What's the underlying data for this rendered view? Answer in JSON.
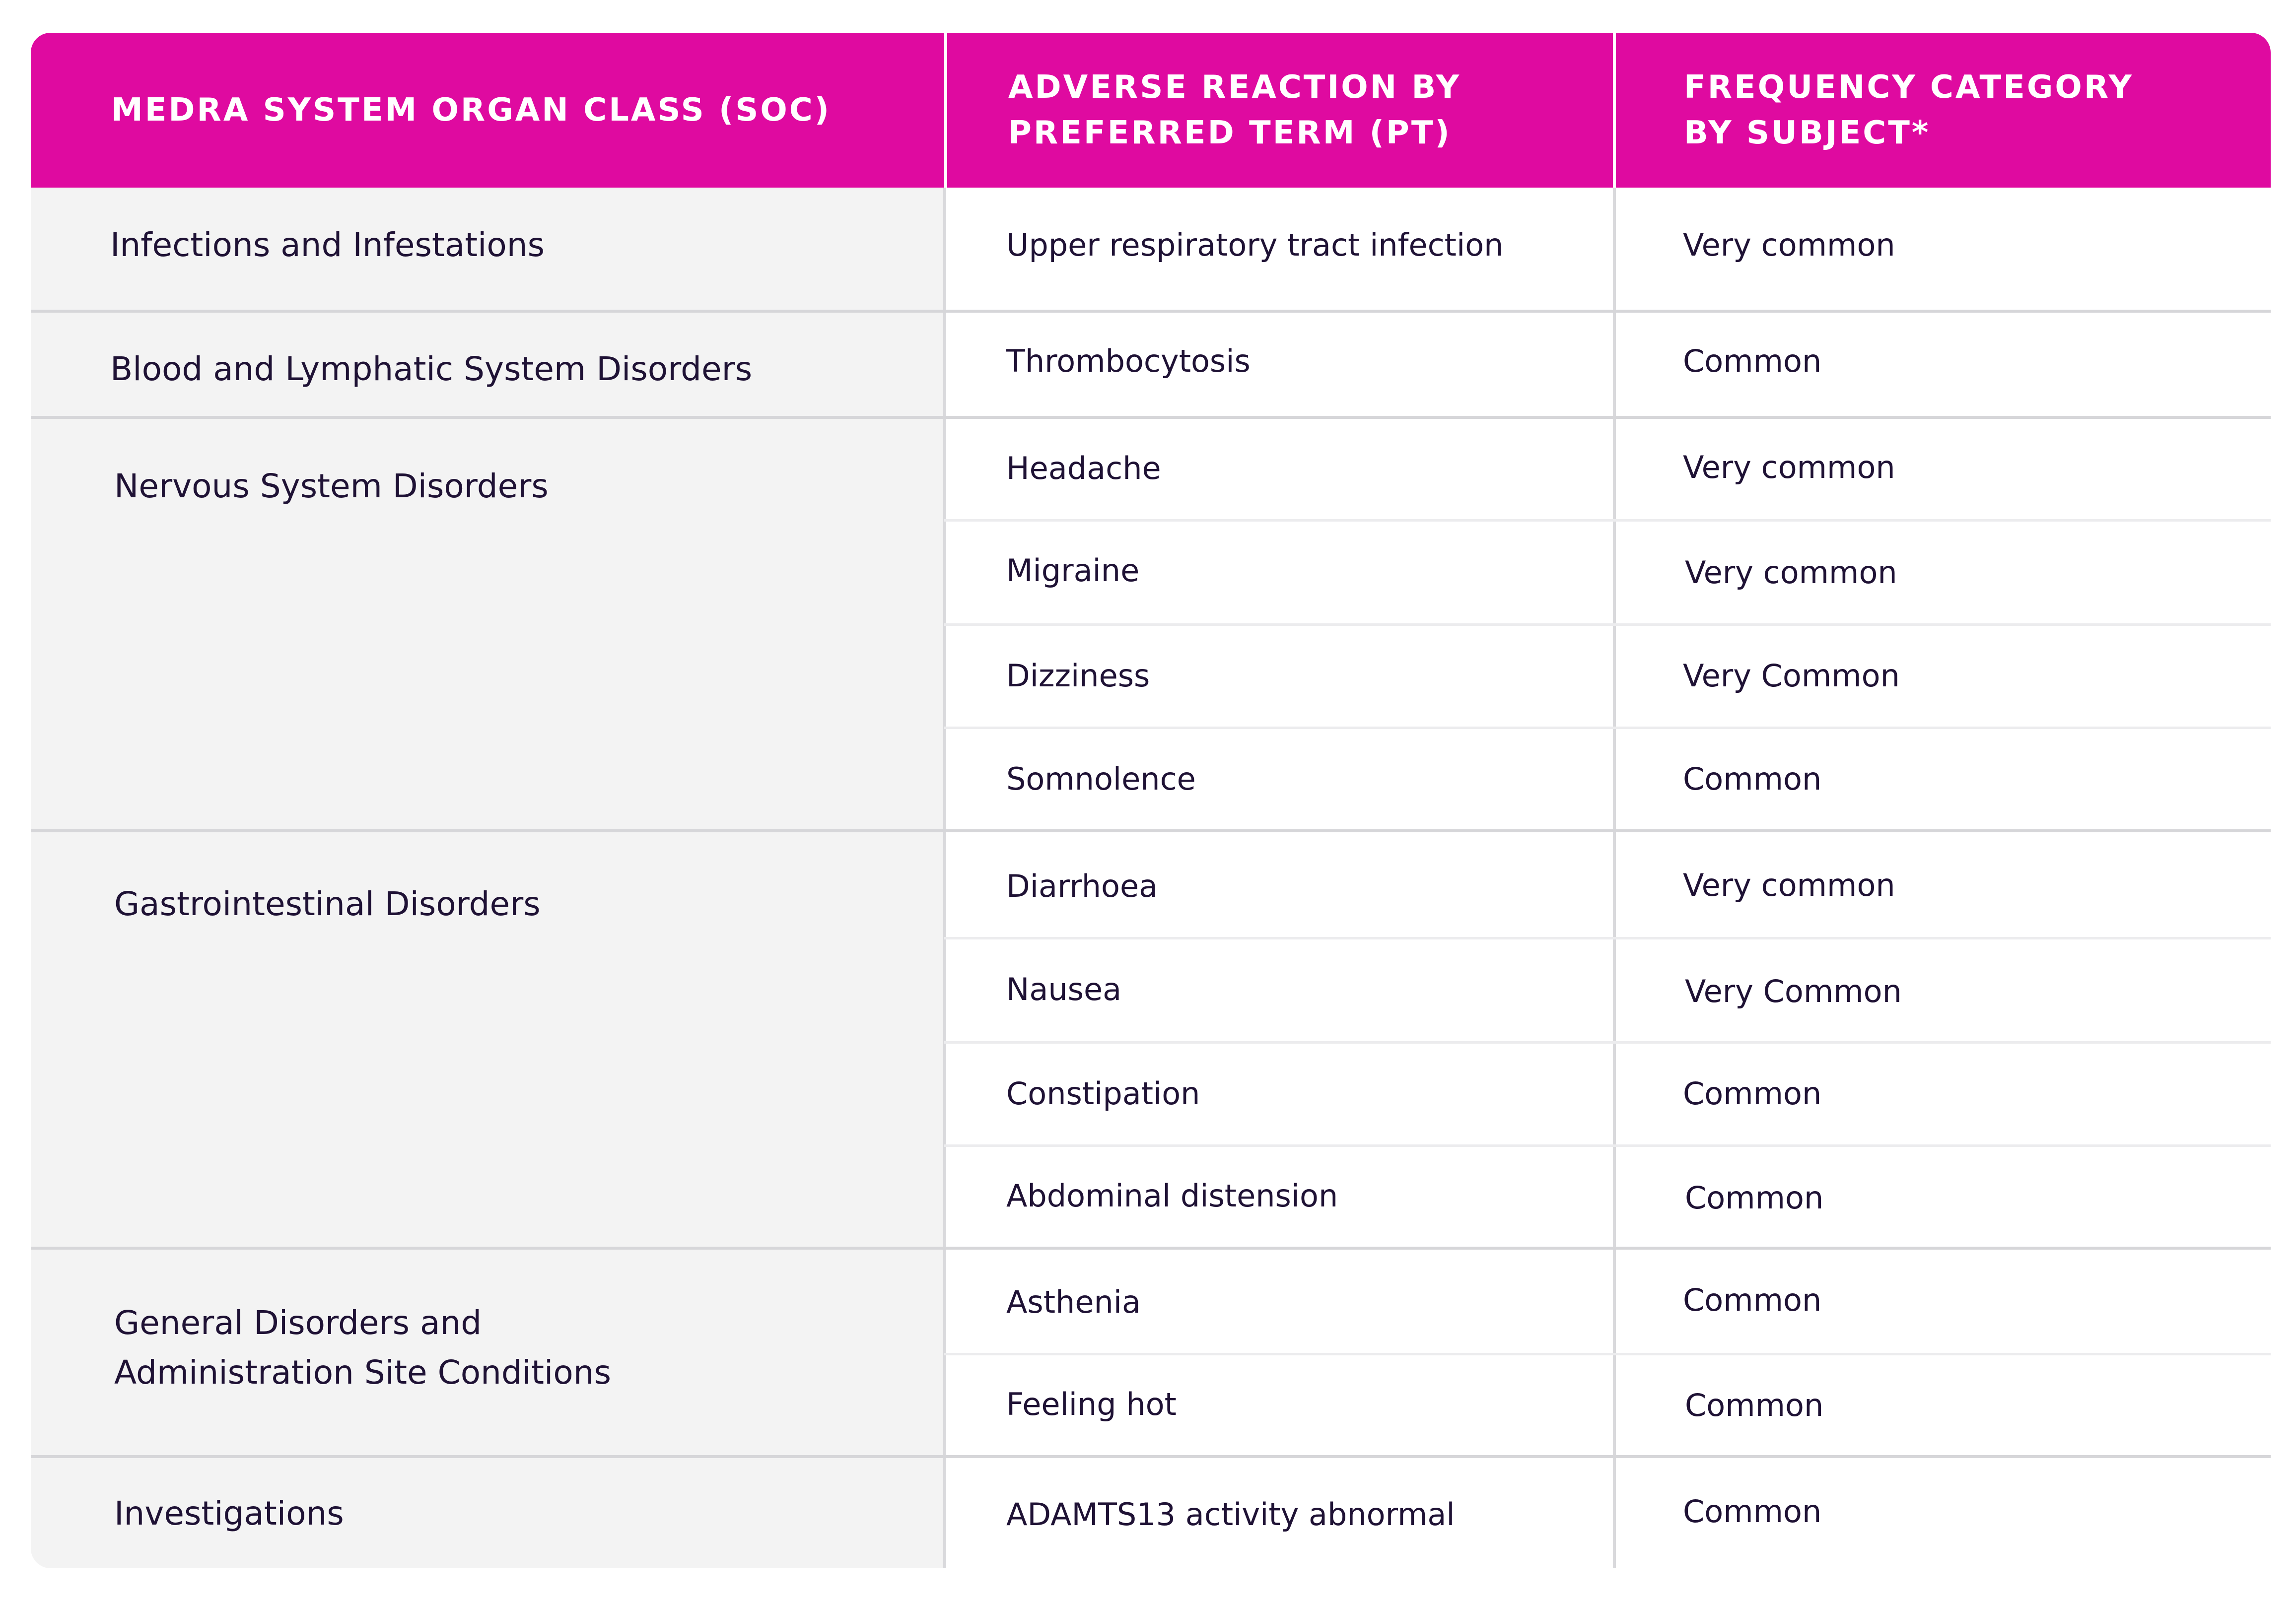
{
  "header": {
    "col1": "MEDRA SYSTEM ORGAN CLASS (SOC)",
    "col2_line1": "ADVERSE REACTION BY",
    "col2_line2": "PREFERRED TERM (PT)",
    "col3_line1": "FREQUENCY CATEGORY",
    "col3_line2": "BY SUBJECT*"
  },
  "colors": {
    "header_bg": "#df0aa0",
    "soc_bg": "#f3f3f3",
    "text": "#1f1235"
  },
  "groups": [
    {
      "soc": [
        "Infections and Infestations"
      ],
      "rows": [
        {
          "pt": "Upper respiratory tract infection",
          "freq": "Very common"
        }
      ]
    },
    {
      "soc": [
        "Blood and Lymphatic System Disorders"
      ],
      "rows": [
        {
          "pt": "Thrombocytosis",
          "freq": "Common"
        }
      ]
    },
    {
      "soc": [
        "Nervous System Disorders"
      ],
      "rows": [
        {
          "pt": "Headache",
          "freq": "Very common"
        },
        {
          "pt": "Migraine",
          "freq": "Very common"
        },
        {
          "pt": "Dizziness",
          "freq": "Very Common"
        },
        {
          "pt": "Somnolence",
          "freq": "Common"
        }
      ]
    },
    {
      "soc": [
        "Gastrointestinal Disorders"
      ],
      "rows": [
        {
          "pt": "Diarrhoea",
          "freq": "Very common"
        },
        {
          "pt": "Nausea",
          "freq": "Very Common"
        },
        {
          "pt": "Constipation",
          "freq": "Common"
        },
        {
          "pt": "Abdominal distension",
          "freq": "Common"
        }
      ]
    },
    {
      "soc": [
        "General Disorders and",
        "Administration Site Conditions"
      ],
      "rows": [
        {
          "pt": "Asthenia",
          "freq": "Common"
        },
        {
          "pt": "Feeling hot",
          "freq": "Common"
        }
      ]
    },
    {
      "soc": [
        "Investigations"
      ],
      "rows": [
        {
          "pt": "ADAMTS13 activity abnormal",
          "freq": "Common"
        }
      ]
    }
  ]
}
